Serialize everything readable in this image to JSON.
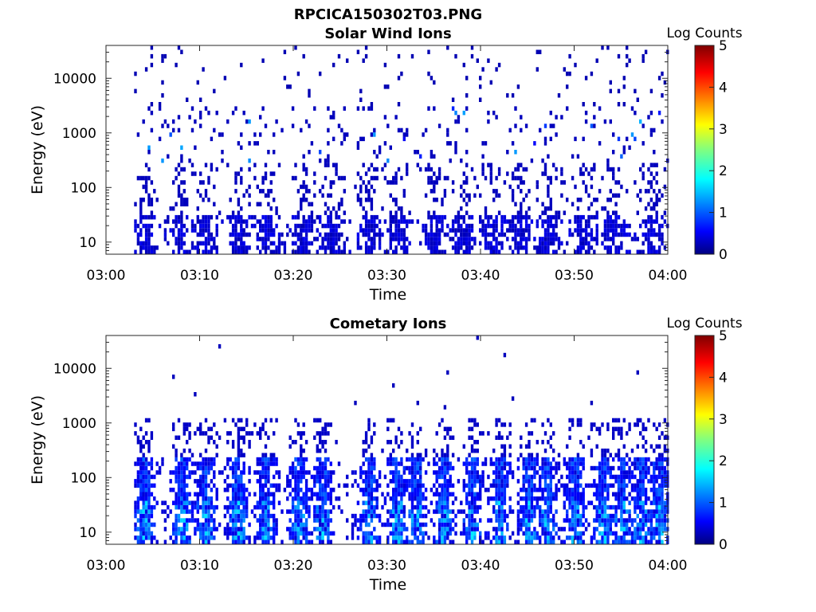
{
  "figure_title": "RPCICA150302T03.PNG",
  "chart_data": [
    {
      "type": "heatmap",
      "title": "Solar Wind Ions",
      "xlabel": "Time",
      "ylabel": "Energy (eV)",
      "x_range": [
        "03:00",
        "04:00"
      ],
      "x_ticks": [
        "03:00",
        "03:10",
        "03:20",
        "03:30",
        "03:40",
        "03:50",
        "04:00"
      ],
      "y_scale": "log",
      "ylim": [
        6,
        40000
      ],
      "y_ticks": [
        "10",
        "100",
        "1000",
        "10000"
      ],
      "colorbar": {
        "label": "Log Counts",
        "min": 0,
        "max": 5,
        "ticks": [
          "0",
          "1",
          "2",
          "3",
          "4",
          "5"
        ],
        "colormap": "jet"
      },
      "description_values": {
        "low_energy_band_eV": [
          6,
          30
        ],
        "dominant_log_counts": 0.3,
        "peak_log_counts": 1.8,
        "peak_energy_eV": 1000,
        "bursts_near_minutes": [
          4,
          8,
          10.5,
          14,
          17,
          21,
          24,
          28,
          31,
          35,
          38,
          41,
          44,
          47,
          51,
          54,
          58
        ]
      }
    },
    {
      "type": "heatmap",
      "title": "Cometary Ions",
      "xlabel": "Time",
      "ylabel": "Energy (eV)",
      "x_range": [
        "03:00",
        "04:00"
      ],
      "x_ticks": [
        "03:00",
        "03:10",
        "03:20",
        "03:30",
        "03:40",
        "03:50",
        "04:00"
      ],
      "y_scale": "log",
      "ylim": [
        6,
        40000
      ],
      "y_ticks": [
        "10",
        "100",
        "1000",
        "10000"
      ],
      "colorbar": {
        "label": "Log Counts",
        "min": 0,
        "max": 5,
        "ticks": [
          "0",
          "1",
          "2",
          "3",
          "4",
          "5"
        ],
        "colormap": "jet"
      },
      "description_values": {
        "energy_band_eV": [
          6,
          1000
        ],
        "dominant_log_counts": 0.6,
        "peak_log_counts": 1.9,
        "peak_energy_eV": 15,
        "bursts_near_minutes": [
          4,
          8,
          10.5,
          14,
          17,
          20.5,
          23,
          28,
          31,
          33,
          36,
          39,
          42,
          45,
          47,
          50,
          53,
          55,
          57,
          59
        ]
      }
    }
  ]
}
